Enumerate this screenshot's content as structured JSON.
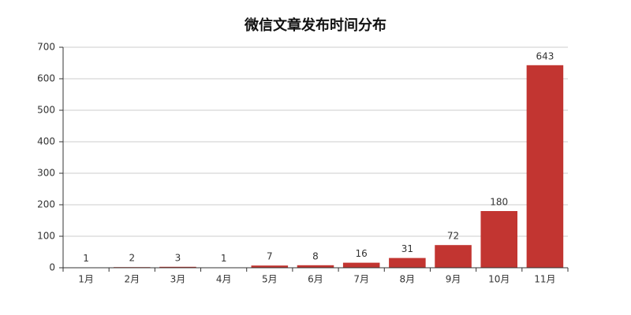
{
  "chart_data": {
    "type": "bar",
    "title": "微信文章发布时间分布",
    "categories": [
      "1月",
      "2月",
      "3月",
      "4月",
      "5月",
      "6月",
      "7月",
      "8月",
      "9月",
      "10月",
      "11月"
    ],
    "values": [
      1,
      2,
      3,
      1,
      7,
      8,
      16,
      31,
      72,
      180,
      643
    ],
    "color": "#c23531",
    "ylim": [
      0,
      700
    ],
    "yticks": [
      0,
      100,
      200,
      300,
      400,
      500,
      600,
      700
    ],
    "grid": true
  }
}
